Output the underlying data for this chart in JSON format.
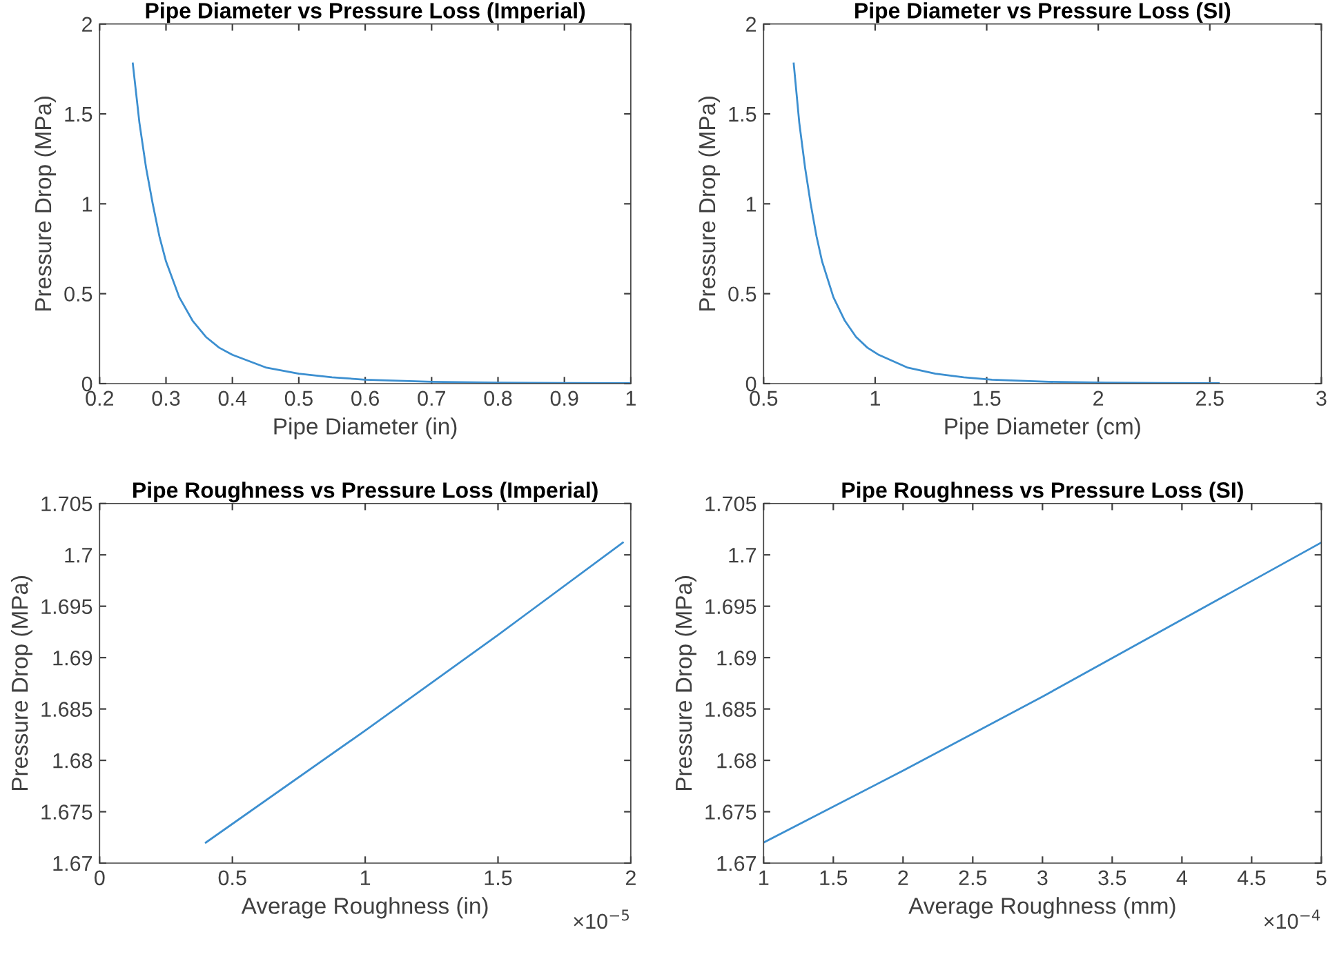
{
  "chart_data": [
    {
      "type": "line",
      "title": "Pipe Diameter vs Pressure Loss (Imperial)",
      "xlabel": "Pipe Diameter (in)",
      "ylabel": "Pressure Drop (MPa)",
      "xlim": [
        0.2,
        1
      ],
      "xticks": [
        0.2,
        0.3,
        0.4,
        0.5,
        0.6,
        0.7,
        0.8,
        0.9,
        1
      ],
      "ylim": [
        0,
        2
      ],
      "yticks": [
        0,
        0.5,
        1,
        1.5,
        2
      ],
      "grid": false,
      "x": [
        0.25,
        0.26,
        0.27,
        0.28,
        0.29,
        0.3,
        0.32,
        0.34,
        0.36,
        0.38,
        0.4,
        0.45,
        0.5,
        0.55,
        0.6,
        0.7,
        0.8,
        0.9,
        1.0
      ],
      "series": [
        {
          "color": "#3c8fd0",
          "values": [
            1.78,
            1.45,
            1.2,
            1.0,
            0.82,
            0.68,
            0.48,
            0.35,
            0.26,
            0.2,
            0.16,
            0.09,
            0.055,
            0.035,
            0.022,
            0.01,
            0.005,
            0.003,
            0.002
          ]
        }
      ]
    },
    {
      "type": "line",
      "title": "Pipe Diameter vs Pressure Loss (SI)",
      "xlabel": "Pipe Diameter (cm)",
      "ylabel": "Pressure Drop (MPa)",
      "xlim": [
        0.5,
        3
      ],
      "xticks": [
        0.5,
        1,
        1.5,
        2,
        2.5,
        3
      ],
      "ylim": [
        0,
        2
      ],
      "yticks": [
        0,
        0.5,
        1,
        1.5,
        2
      ],
      "grid": false,
      "x": [
        0.635,
        0.66,
        0.686,
        0.711,
        0.737,
        0.762,
        0.813,
        0.864,
        0.914,
        0.965,
        1.016,
        1.143,
        1.27,
        1.397,
        1.524,
        1.778,
        2.032,
        2.286,
        2.54
      ],
      "series": [
        {
          "color": "#3c8fd0",
          "values": [
            1.78,
            1.45,
            1.2,
            1.0,
            0.82,
            0.68,
            0.48,
            0.35,
            0.26,
            0.2,
            0.16,
            0.09,
            0.055,
            0.035,
            0.022,
            0.01,
            0.005,
            0.003,
            0.002
          ]
        }
      ]
    },
    {
      "type": "line",
      "title": "Pipe Roughness vs Pressure Loss (Imperial)",
      "xlabel": "Average Roughness (in)",
      "ylabel": "Pressure Drop (MPa)",
      "annotations": [
        "×10$^{−5}$"
      ],
      "xlim": [
        0,
        2
      ],
      "xticks": [
        0,
        0.5,
        1,
        1.5,
        2
      ],
      "ylim": [
        1.67,
        1.705
      ],
      "yticks": [
        1.67,
        1.675,
        1.68,
        1.685,
        1.69,
        1.695,
        1.7,
        1.705
      ],
      "grid": false,
      "x": [
        0.4,
        1.0,
        1.5,
        1.97
      ],
      "series": [
        {
          "color": "#3c8fd0",
          "values": [
            1.672,
            1.6829,
            1.6922,
            1.7012
          ]
        }
      ]
    },
    {
      "type": "line",
      "title": "Pipe Roughness vs Pressure Loss (SI)",
      "xlabel": "Average Roughness (mm)",
      "ylabel": "Pressure Drop (MPa)",
      "annotations": [
        "×10$^{−4}$"
      ],
      "xlim": [
        1,
        5
      ],
      "xticks": [
        1,
        1.5,
        2,
        2.5,
        3,
        3.5,
        4,
        4.5,
        5
      ],
      "ylim": [
        1.67,
        1.705
      ],
      "yticks": [
        1.67,
        1.675,
        1.68,
        1.685,
        1.69,
        1.695,
        1.7,
        1.705
      ],
      "grid": false,
      "x": [
        1,
        2,
        3,
        4,
        5
      ],
      "series": [
        {
          "color": "#3c8fd0",
          "values": [
            1.672,
            1.679,
            1.6862,
            1.6937,
            1.7012
          ]
        }
      ]
    }
  ]
}
